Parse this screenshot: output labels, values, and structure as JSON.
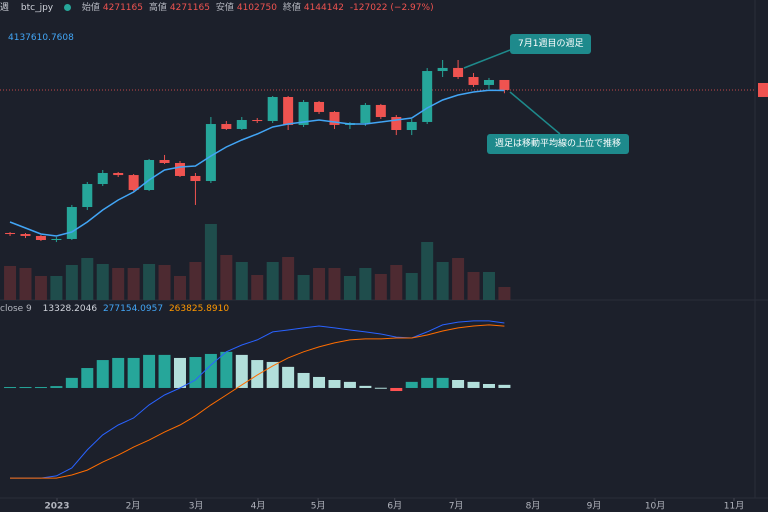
{
  "header": {
    "interval": "週",
    "symbol": "btc_jpy",
    "open_label": "始値",
    "high_label": "高値",
    "low_label": "安値",
    "close_label": "終値",
    "change": -127022,
    "change_label": "(−2.97%)"
  },
  "chart_data": [
    {
      "type": "candlestick",
      "up_color": "#26a69a",
      "down_color": "#ef5350",
      "ylim": [
        1477000,
        5033000
      ],
      "open": [
        2328000,
        2315000,
        2290000,
        2239000,
        2252000,
        2658000,
        2950000,
        3090000,
        3064000,
        2874000,
        3255000,
        3217000,
        3052000,
        2988000,
        3712000,
        3649000,
        3763000,
        3750000,
        4055000,
        3700000,
        3992000,
        3865000,
        3700000,
        3724000,
        3954000,
        3801000,
        3636000,
        3738000,
        4385000,
        4424000,
        4309000,
        4208000,
        4271165
      ],
      "high": [
        2340000,
        2328000,
        2302000,
        2277000,
        2684000,
        2976000,
        3128000,
        3103000,
        3077000,
        3268000,
        3319000,
        3242000,
        3090000,
        3801000,
        3750000,
        3801000,
        3788000,
        4068000,
        4068000,
        4017000,
        4004000,
        3877000,
        3737000,
        3979000,
        3967000,
        3826000,
        3776000,
        4423000,
        4525000,
        4525000,
        4360000,
        4297000,
        4271165
      ],
      "low": [
        2290000,
        2264000,
        2226000,
        2213000,
        2239000,
        2620000,
        2925000,
        3039000,
        2861000,
        2861000,
        3204000,
        3039000,
        2684000,
        2963000,
        3636000,
        3636000,
        3725000,
        3725000,
        3636000,
        3674000,
        3839000,
        3649000,
        3649000,
        3687000,
        3776000,
        3572000,
        3572000,
        3712000,
        4309000,
        4284000,
        4182000,
        4157000,
        4102750
      ],
      "close": [
        2315000,
        2290000,
        2239000,
        2252000,
        2658000,
        2950000,
        3090000,
        3064000,
        2874000,
        3255000,
        3217000,
        3052000,
        2988000,
        3712000,
        3649000,
        3763000,
        3750000,
        4055000,
        3700000,
        3992000,
        3865000,
        3700000,
        3724000,
        3954000,
        3801000,
        3636000,
        3738000,
        4385000,
        4424000,
        4309000,
        4208000,
        4271000,
        4144142
      ],
      "ma": {
        "color": "#42a5f5",
        "values": [
          2467000,
          2391000,
          2315000,
          2290000,
          2340000,
          2467000,
          2620000,
          2747000,
          2849000,
          3001000,
          3128000,
          3166000,
          3179000,
          3306000,
          3420000,
          3509000,
          3585000,
          3674000,
          3712000,
          3738000,
          3763000,
          3738000,
          3712000,
          3712000,
          3738000,
          3763000,
          3788000,
          3916000,
          4017000,
          4081000,
          4119000,
          4140000,
          4137610.7608
        ]
      },
      "annotations": [
        {
          "text": "7月1週目の週足"
        },
        {
          "text": "週足は移動平均線の上位で推移"
        }
      ]
    },
    {
      "type": "volume",
      "up_color": "#1f4d4c",
      "down_color": "#4d2a31",
      "ylim": [
        0,
        100
      ],
      "values": [
        34,
        32,
        24,
        24,
        35,
        42,
        36,
        32,
        32,
        36,
        35,
        24,
        38,
        76,
        45,
        38,
        25,
        38,
        43,
        25,
        32,
        32,
        24,
        32,
        26,
        35,
        27,
        58,
        38,
        42,
        28,
        28,
        13
      ]
    },
    {
      "type": "macd",
      "ylim": [
        -469000,
        375000
      ],
      "xlim": [
        -0.65,
        49.06
      ],
      "xticks": [
        {
          "value": 3.04,
          "label": "2023"
        },
        {
          "value": 7.96,
          "label": "2月"
        },
        {
          "value": 12.04,
          "label": "3月"
        },
        {
          "value": 16.05,
          "label": "4月"
        },
        {
          "value": 19.94,
          "label": "5月"
        },
        {
          "value": 24.9,
          "label": "6月"
        },
        {
          "value": 28.87,
          "label": "7月"
        },
        {
          "value": 33.85,
          "label": "8月"
        },
        {
          "value": 37.8,
          "label": "9月"
        },
        {
          "value": 41.75,
          "label": "10月"
        },
        {
          "value": 46.86,
          "label": "11月"
        }
      ],
      "label": "close 9",
      "histogram": {
        "colors": {
          "pos_up": "#26a69a",
          "pos_down": "#b2dfdb",
          "neg_down": "#ff5252",
          "neg_up": "#ffcdd2"
        },
        "values": [
          4000,
          4000,
          4000,
          8000,
          43000,
          85000,
          119000,
          128000,
          128000,
          141000,
          141000,
          128000,
          132000,
          145000,
          154000,
          141000,
          119000,
          111000,
          90000,
          64000,
          47000,
          34000,
          26000,
          9000,
          1000,
          -13000,
          26000,
          43000,
          43000,
          34000,
          26000,
          17000,
          13328.2046
        ]
      },
      "series": [
        {
          "color": "#2962ff",
          "values": [
            -384000,
            -384000,
            -384000,
            -375000,
            -341000,
            -264000,
            -200000,
            -158000,
            -128000,
            -72000,
            -30000,
            0,
            34000,
            98000,
            154000,
            183000,
            205000,
            239000,
            247000,
            256000,
            264000,
            256000,
            247000,
            239000,
            230000,
            217000,
            213000,
            239000,
            269000,
            281000,
            286000,
            286000,
            277154.0957
          ]
        },
        {
          "color": "#ff6d00",
          "values": [
            -384000,
            -384000,
            -384000,
            -384000,
            -371000,
            -350000,
            -316000,
            -286000,
            -252000,
            -222000,
            -188000,
            -158000,
            -119000,
            -72000,
            -30000,
            13000,
            55000,
            94000,
            128000,
            154000,
            175000,
            192000,
            205000,
            209000,
            209000,
            213000,
            213000,
            226000,
            243000,
            256000,
            264000,
            269000,
            263825.891
          ],
          "value_labels": [
            null,
            null,
            null,
            null,
            null,
            null,
            null,
            null,
            null,
            null,
            null,
            null,
            null,
            null,
            null,
            null,
            null,
            null,
            null,
            null,
            null,
            null,
            null,
            null,
            null,
            null,
            null,
            null,
            null,
            null,
            null,
            null,
            "263825.8910"
          ]
        }
      ]
    }
  ]
}
